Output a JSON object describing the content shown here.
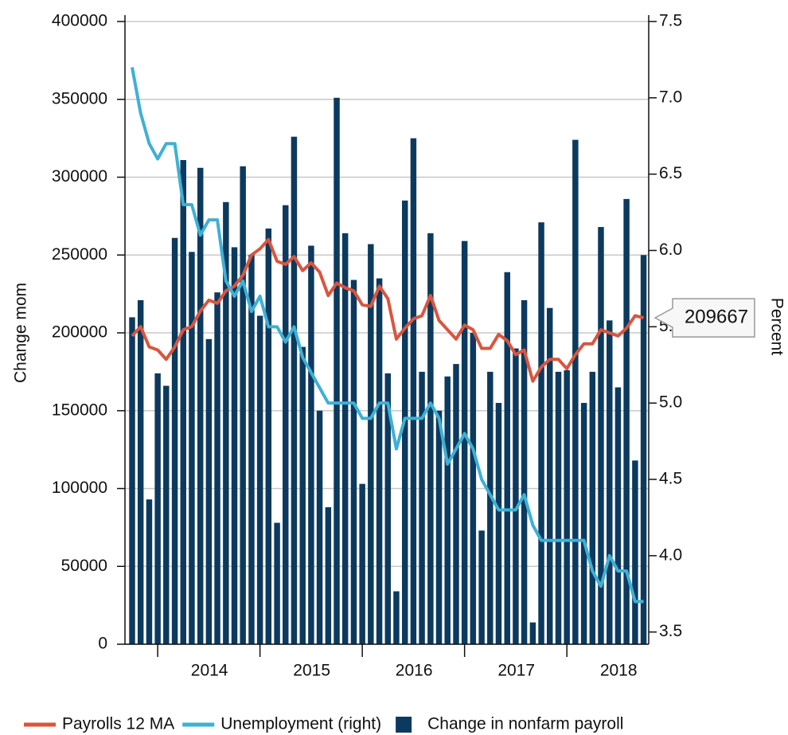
{
  "chart_data": {
    "type": "bar",
    "x": [
      2013.75,
      2013.833,
      2013.917,
      2014,
      2014.083,
      2014.167,
      2014.25,
      2014.333,
      2014.417,
      2014.5,
      2014.583,
      2014.667,
      2014.75,
      2014.833,
      2014.917,
      2015,
      2015.083,
      2015.167,
      2015.25,
      2015.333,
      2015.417,
      2015.5,
      2015.583,
      2015.667,
      2015.75,
      2015.833,
      2015.917,
      2016,
      2016.083,
      2016.167,
      2016.25,
      2016.333,
      2016.417,
      2016.5,
      2016.583,
      2016.667,
      2016.75,
      2016.833,
      2016.917,
      2017,
      2017.083,
      2017.167,
      2017.25,
      2017.333,
      2017.417,
      2017.5,
      2017.583,
      2017.667,
      2017.75,
      2017.833,
      2017.917,
      2018,
      2018.083,
      2018.167,
      2018.25,
      2018.333,
      2018.417,
      2018.5,
      2018.583,
      2018.667,
      2018.75
    ],
    "xlim": [
      2013.68,
      2018.8
    ],
    "xticks": [
      2014,
      2015,
      2016,
      2017,
      2018
    ],
    "ylabel": "Change mom",
    "y2label": "Percent",
    "ylim": [
      0,
      400000
    ],
    "yticks": [
      0,
      50000,
      100000,
      150000,
      200000,
      250000,
      300000,
      350000,
      400000
    ],
    "y2lim": [
      3.42,
      7.5
    ],
    "y2ticks": [
      3.5,
      {
        "value": 4,
        "label": "4.0"
      },
      4.5,
      {
        "value": 5,
        "label": "5.0"
      },
      5.5,
      {
        "value": 6,
        "label": "6.0"
      },
      6.5,
      {
        "value": 7,
        "label": "7.0"
      },
      7.5
    ],
    "grid": true,
    "legend": "bottom",
    "series": [
      {
        "name": "Payrolls 12 MA",
        "type": "line",
        "color": "#d9553f",
        "values": [
          198000,
          204000,
          191000,
          189000,
          183000,
          191000,
          202000,
          204000,
          214000,
          221000,
          219000,
          227000,
          230000,
          237000,
          250000,
          254000,
          260000,
          246000,
          244000,
          249000,
          240000,
          245000,
          239000,
          224000,
          232000,
          229000,
          227000,
          218000,
          217000,
          230000,
          222000,
          196000,
          203000,
          209000,
          211000,
          224000,
          208000,
          202000,
          196000,
          205000,
          202000,
          190000,
          190000,
          199000,
          195000,
          186000,
          189000,
          169000,
          178000,
          183000,
          183000,
          177000,
          186000,
          193000,
          193000,
          202000,
          200000,
          198000,
          203000,
          211000,
          209667
        ]
      },
      {
        "name": "Unemployment (right)",
        "type": "line",
        "axis": "y2",
        "color": "#3eb0d5",
        "values": [
          7.2,
          6.9,
          6.7,
          6.6,
          6.7,
          6.7,
          6.3,
          6.3,
          6.1,
          6.2,
          6.2,
          5.8,
          5.7,
          5.8,
          5.6,
          5.7,
          5.5,
          5.5,
          5.4,
          5.5,
          5.3,
          5.2,
          5.1,
          5.0,
          5.0,
          5.0,
          5.0,
          4.9,
          4.9,
          5.0,
          5.0,
          4.7,
          4.9,
          4.9,
          4.9,
          5.0,
          4.9,
          4.6,
          4.7,
          4.8,
          4.7,
          4.5,
          4.4,
          4.3,
          4.3,
          4.3,
          4.4,
          4.2,
          4.1,
          4.1,
          4.1,
          4.1,
          4.1,
          4.1,
          3.9,
          3.8,
          4.0,
          3.9,
          3.9,
          3.7,
          3.7
        ]
      },
      {
        "name": "Change in nonfarm payroll",
        "type": "bar",
        "color": "#0c3a5e",
        "values": [
          210000,
          221000,
          93000,
          174000,
          166000,
          261000,
          311000,
          252000,
          306000,
          196000,
          226000,
          284000,
          255000,
          307000,
          250000,
          211000,
          267000,
          78000,
          282000,
          326000,
          191000,
          256000,
          150000,
          88000,
          351000,
          264000,
          234000,
          103000,
          257000,
          235000,
          174000,
          34000,
          285000,
          325000,
          175000,
          264000,
          150000,
          172000,
          180000,
          259000,
          200000,
          73000,
          175000,
          155000,
          239000,
          190000,
          221000,
          14000,
          271000,
          216000,
          175000,
          176000,
          324000,
          155000,
          175000,
          268000,
          208000,
          165000,
          286000,
          118000,
          250000
        ]
      }
    ]
  }
}
